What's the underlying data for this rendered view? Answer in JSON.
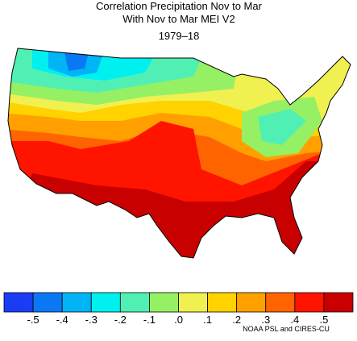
{
  "title_lines": [
    "Correlation Precipitation Nov to Mar",
    "With Nov to Mar MEI V2"
  ],
  "period": "1979–18",
  "colorbar": {
    "colors": [
      "#1a3cf5",
      "#0a78f5",
      "#00b4f5",
      "#00f0f0",
      "#50f0b4",
      "#96f064",
      "#f0f050",
      "#ffd200",
      "#ffa000",
      "#ff6400",
      "#ff1400",
      "#c80000"
    ],
    "labels": [
      "-.5",
      "-.4",
      "-.3",
      "-.2",
      "-.1",
      ".0",
      ".1",
      ".2",
      ".3",
      ".4",
      ".5"
    ]
  },
  "credit": "NOAA PSL and CIRES-CU"
}
